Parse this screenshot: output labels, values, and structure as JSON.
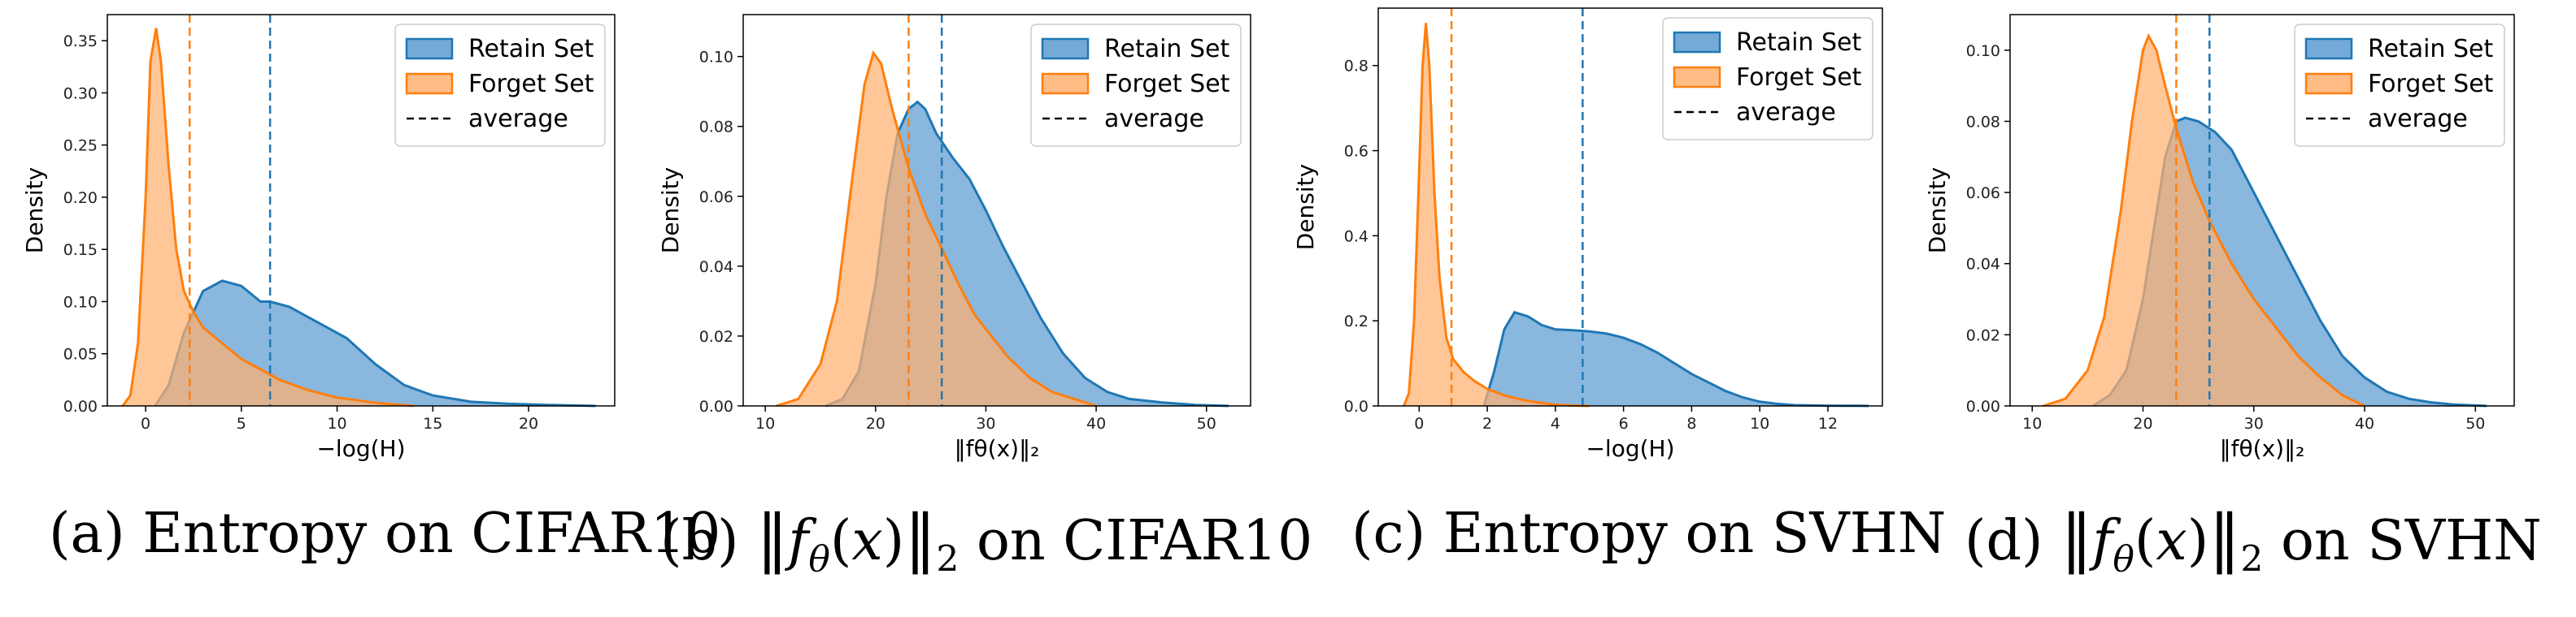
{
  "colors": {
    "retain": "#1f77b4",
    "forget": "#ff7f0e",
    "retain_fill": "#5b9bd0",
    "forget_fill": "#ffb070"
  },
  "legend": {
    "retain": "Retain Set",
    "forget": "Forget Set",
    "average": "average"
  },
  "ylabel": "Density",
  "captions": [
    {
      "prefix": "(a) Entropy on CIFAR10"
    },
    {
      "prefix": "(b)",
      "suffix": "on CIFAR10"
    },
    {
      "prefix": "(c) Entropy on SVHN"
    },
    {
      "prefix": "(d)",
      "suffix": "on SVHN"
    }
  ],
  "chart_data": [
    {
      "type": "area",
      "title": "(a) Entropy on CIFAR10",
      "xlabel": "−log(H)",
      "ylabel": "Density",
      "xlim": [
        -2,
        24.5
      ],
      "ylim": [
        0,
        0.375
      ],
      "xticks": [
        0,
        5,
        10,
        15,
        20
      ],
      "yticks": [
        0.0,
        0.05,
        0.1,
        0.15,
        0.2,
        0.25,
        0.3,
        0.35
      ],
      "ytick_labels": [
        "0.00",
        "0.05",
        "0.10",
        "0.15",
        "0.20",
        "0.25",
        "0.30",
        "0.35"
      ],
      "series": [
        {
          "name": "Retain Set",
          "x": [
            0.5,
            1.2,
            2.0,
            3.0,
            4.0,
            5.0,
            6.0,
            6.5,
            7.5,
            9.0,
            10.5,
            12.0,
            13.5,
            15.0,
            17.0,
            19.0,
            21.0,
            23.5
          ],
          "y": [
            0.0,
            0.02,
            0.07,
            0.11,
            0.12,
            0.115,
            0.1,
            0.1,
            0.095,
            0.08,
            0.065,
            0.04,
            0.02,
            0.01,
            0.004,
            0.002,
            0.001,
            0.0
          ],
          "mean": 6.5
        },
        {
          "name": "Forget Set",
          "x": [
            -1.2,
            -0.8,
            -0.4,
            0.0,
            0.25,
            0.55,
            0.8,
            1.2,
            1.6,
            2.0,
            2.5,
            3.0,
            4.0,
            5.0,
            6.0,
            7.0,
            8.5,
            10.0,
            12.0,
            14.0
          ],
          "y": [
            0.0,
            0.01,
            0.06,
            0.2,
            0.33,
            0.362,
            0.33,
            0.23,
            0.15,
            0.11,
            0.09,
            0.075,
            0.06,
            0.045,
            0.035,
            0.025,
            0.015,
            0.008,
            0.003,
            0.0
          ],
          "mean": 2.3
        }
      ]
    },
    {
      "type": "area",
      "title": "(b) ||f(x)||2 on CIFAR10",
      "xlabel": "‖fθ(x)‖₂",
      "ylabel": "Density",
      "xlim": [
        8,
        54
      ],
      "ylim": [
        0,
        0.112
      ],
      "xticks": [
        10,
        20,
        30,
        40,
        50
      ],
      "yticks": [
        0.0,
        0.02,
        0.04,
        0.06,
        0.08,
        0.1
      ],
      "ytick_labels": [
        "0.00",
        "0.02",
        "0.04",
        "0.06",
        "0.08",
        "0.10"
      ],
      "series": [
        {
          "name": "Retain Set",
          "x": [
            15.5,
            17.0,
            18.5,
            20.0,
            21.0,
            22.0,
            23.0,
            23.8,
            24.5,
            25.5,
            27.0,
            28.5,
            30.0,
            31.5,
            33.0,
            35.0,
            37.0,
            39.0,
            41.0,
            43.0,
            46.0,
            49.0,
            52.0
          ],
          "y": [
            0.0,
            0.002,
            0.01,
            0.035,
            0.06,
            0.078,
            0.085,
            0.087,
            0.085,
            0.078,
            0.071,
            0.065,
            0.056,
            0.046,
            0.037,
            0.025,
            0.015,
            0.008,
            0.004,
            0.002,
            0.001,
            0.0003,
            0.0
          ],
          "mean": 26.0
        },
        {
          "name": "Forget Set",
          "x": [
            11.0,
            13.0,
            15.0,
            16.5,
            18.0,
            19.0,
            19.8,
            20.5,
            21.5,
            23.0,
            24.5,
            26.0,
            27.5,
            29.0,
            30.5,
            32.0,
            34.0,
            36.0,
            38.0,
            40.0
          ],
          "y": [
            0.0,
            0.002,
            0.012,
            0.03,
            0.068,
            0.092,
            0.101,
            0.098,
            0.085,
            0.068,
            0.055,
            0.045,
            0.035,
            0.026,
            0.02,
            0.014,
            0.008,
            0.004,
            0.002,
            0.0
          ],
          "mean": 23.0
        }
      ]
    },
    {
      "type": "area",
      "title": "(c) Entropy on SVHN",
      "xlabel": "−log(H)",
      "ylabel": "Density",
      "xlim": [
        -1.2,
        13.6
      ],
      "ylim": [
        0,
        0.935
      ],
      "xticks": [
        0,
        2,
        4,
        6,
        8,
        10,
        12
      ],
      "yticks": [
        0.0,
        0.2,
        0.4,
        0.6,
        0.8
      ],
      "ytick_labels": [
        "0.0",
        "0.2",
        "0.4",
        "0.6",
        "0.8"
      ],
      "series": [
        {
          "name": "Retain Set",
          "x": [
            1.9,
            2.2,
            2.5,
            2.8,
            3.2,
            3.6,
            4.0,
            4.5,
            5.0,
            5.5,
            6.0,
            6.5,
            7.0,
            7.5,
            8.0,
            8.5,
            9.0,
            9.5,
            10.0,
            10.5,
            11.0,
            12.0,
            13.2
          ],
          "y": [
            0.0,
            0.08,
            0.18,
            0.22,
            0.21,
            0.19,
            0.18,
            0.178,
            0.175,
            0.17,
            0.16,
            0.145,
            0.125,
            0.1,
            0.075,
            0.055,
            0.035,
            0.02,
            0.01,
            0.005,
            0.002,
            0.0005,
            0.0
          ],
          "mean": 4.8
        },
        {
          "name": "Forget Set",
          "x": [
            -0.45,
            -0.3,
            -0.15,
            0.0,
            0.1,
            0.2,
            0.3,
            0.45,
            0.6,
            0.8,
            1.0,
            1.3,
            1.6,
            2.0,
            2.5,
            3.0,
            3.5,
            4.0,
            4.5,
            5.0
          ],
          "y": [
            0.0,
            0.03,
            0.2,
            0.55,
            0.8,
            0.9,
            0.8,
            0.5,
            0.3,
            0.16,
            0.11,
            0.08,
            0.06,
            0.04,
            0.025,
            0.015,
            0.008,
            0.003,
            0.001,
            0.0
          ],
          "mean": 0.95
        }
      ]
    },
    {
      "type": "area",
      "title": "(d) ||f(x)||2 on SVHN",
      "xlabel": "‖fθ(x)‖₂",
      "ylabel": "Density",
      "xlim": [
        8,
        53.5
      ],
      "ylim": [
        0,
        0.11
      ],
      "xticks": [
        10,
        20,
        30,
        40,
        50
      ],
      "yticks": [
        0.0,
        0.02,
        0.04,
        0.06,
        0.08,
        0.1
      ],
      "ytick_labels": [
        "0.00",
        "0.02",
        "0.04",
        "0.06",
        "0.08",
        "0.10"
      ],
      "series": [
        {
          "name": "Retain Set",
          "x": [
            15.5,
            17.0,
            18.5,
            20.0,
            21.0,
            22.0,
            23.0,
            23.8,
            25.0,
            26.5,
            28.0,
            30.0,
            32.0,
            34.0,
            36.0,
            38.0,
            40.0,
            42.0,
            44.0,
            46.0,
            48.0,
            51.0
          ],
          "y": [
            0.0,
            0.003,
            0.01,
            0.03,
            0.05,
            0.07,
            0.08,
            0.081,
            0.08,
            0.077,
            0.072,
            0.06,
            0.048,
            0.036,
            0.024,
            0.014,
            0.008,
            0.004,
            0.002,
            0.001,
            0.0004,
            0.0
          ],
          "mean": 26.0
        },
        {
          "name": "Forget Set",
          "x": [
            11.0,
            13.0,
            15.0,
            16.5,
            18.0,
            19.0,
            20.0,
            20.5,
            21.2,
            22.0,
            23.0,
            24.5,
            26.0,
            28.0,
            30.0,
            32.0,
            34.0,
            36.0,
            38.0,
            40.0
          ],
          "y": [
            0.0,
            0.002,
            0.01,
            0.025,
            0.055,
            0.08,
            0.1,
            0.104,
            0.1,
            0.09,
            0.078,
            0.063,
            0.052,
            0.04,
            0.03,
            0.022,
            0.014,
            0.008,
            0.003,
            0.0
          ],
          "mean": 23.0
        }
      ]
    }
  ]
}
